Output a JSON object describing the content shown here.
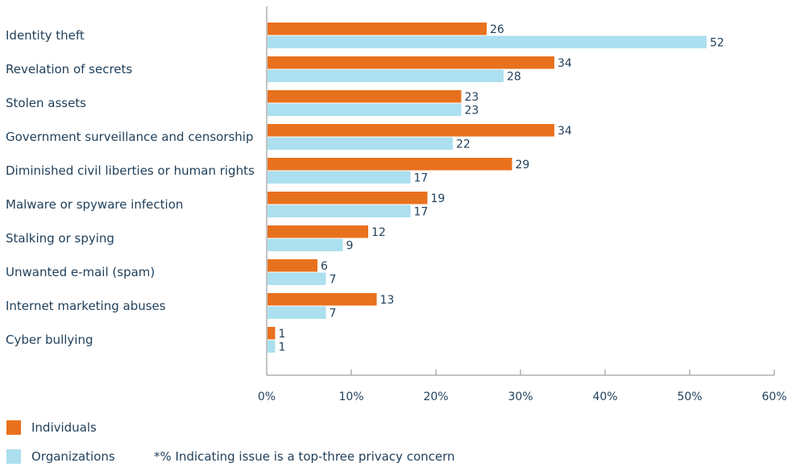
{
  "chart_data": {
    "type": "bar",
    "orientation": "horizontal",
    "categories": [
      "Identity theft",
      "Revelation of secrets",
      "Stolen assets",
      "Government surveillance and censorship",
      "Diminished civil liberties or human rights",
      "Malware or spyware infection",
      "Stalking or spying",
      "Unwanted e-mail (spam)",
      "Internet marketing abuses",
      "Cyber bullying"
    ],
    "series": [
      {
        "name": "Individuals",
        "color": "#e8711e",
        "values": [
          26,
          34,
          23,
          34,
          29,
          19,
          12,
          6,
          13,
          1
        ]
      },
      {
        "name": "Organizations",
        "color": "#acdfef",
        "values": [
          52,
          28,
          23,
          22,
          17,
          17,
          9,
          7,
          7,
          1
        ]
      }
    ],
    "xlim": [
      0,
      60
    ],
    "xticks": [
      "0%",
      "10%",
      "20%",
      "30%",
      "40%",
      "50%",
      "60%"
    ],
    "grid": false,
    "legend_position": "bottom-left"
  },
  "footnote": "*% Indicating issue is a top-three privacy concern",
  "legend": {
    "individuals": "Individuals",
    "organizations": "Organizations"
  },
  "colors": {
    "text": "#1f3f5a",
    "axis": "#8a8a8a"
  }
}
